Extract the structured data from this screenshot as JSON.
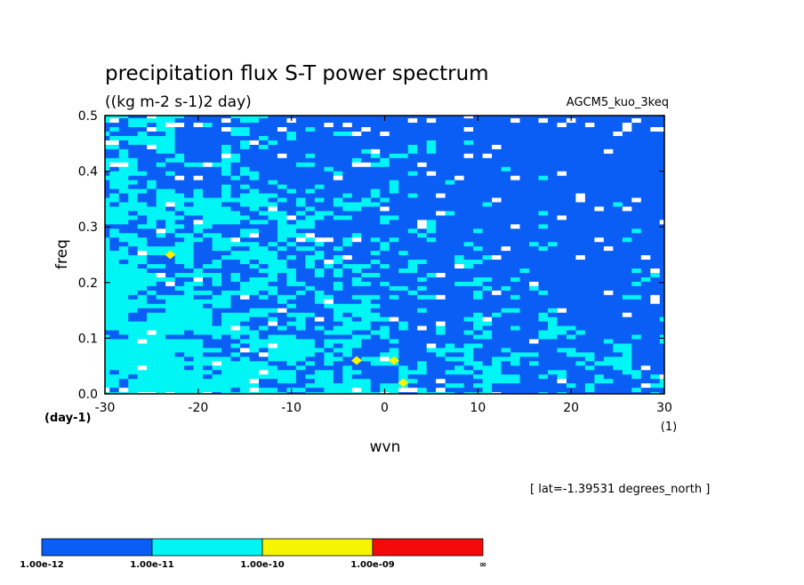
{
  "chart_data": {
    "type": "heatmap",
    "title": "precipitation flux S-T power spectrum",
    "subtitle": "((kg m-2 s-1)2 day)",
    "experiment": "AGCM5_kuo_3keq",
    "xlabel": "wvn",
    "ylabel": "freq",
    "x_unit": "(1)",
    "y_unit": "(day-1)",
    "xlim": [
      -30,
      30
    ],
    "ylim": [
      0,
      0.5
    ],
    "x_ticks": [
      "-30",
      "-20",
      "-10",
      "0",
      "10",
      "20",
      "30"
    ],
    "y_ticks": [
      "0.0",
      "0.1",
      "0.2",
      "0.3",
      "0.4",
      "0.5"
    ],
    "x_tick_values": [
      -30,
      -20,
      -10,
      0,
      10,
      20,
      30
    ],
    "y_tick_values": [
      0,
      0.1,
      0.2,
      0.3,
      0.4,
      0.5
    ],
    "annotation": "[ lat=-1.39531 degrees_north ]",
    "levels": [
      1e-12,
      1e-11,
      1e-10,
      1e-09
    ],
    "colorbar": {
      "labels": [
        "1.00e-12",
        "1.00e-11",
        "1.00e-10",
        "1.00e-09",
        "∞"
      ],
      "colors": [
        "#0a5ef5",
        "#00f5f5",
        "#f5f500",
        "#f50a0a"
      ]
    },
    "colors": {
      "below_first_level": "#ffffff",
      "band_1e12_1e11": "#0a5ef5",
      "band_1e11_1e10": "#00f5f5",
      "band_1e10_1e09": "#f5f500"
    },
    "pattern": "noisy field; mostly 1e-12 to 1e-11 (blue), widespread 1e-11 to 1e-10 (cyan) concentrated at low frequency and wvn -30..10, small 1e-10 to 1e-09 (yellow) spots near wvn -3..2 and freq 0.02..0.06 and near wvn -23, freq 0.25; scattered white (<1e-12) gaps near edges and at wvn 0..3, freq 0.45..0.48",
    "yellow_spots": [
      {
        "x": 1,
        "y": 0.06
      },
      {
        "x": -3,
        "y": 0.06
      },
      {
        "x": 2,
        "y": 0.02
      },
      {
        "x": -23,
        "y": 0.25
      }
    ]
  }
}
